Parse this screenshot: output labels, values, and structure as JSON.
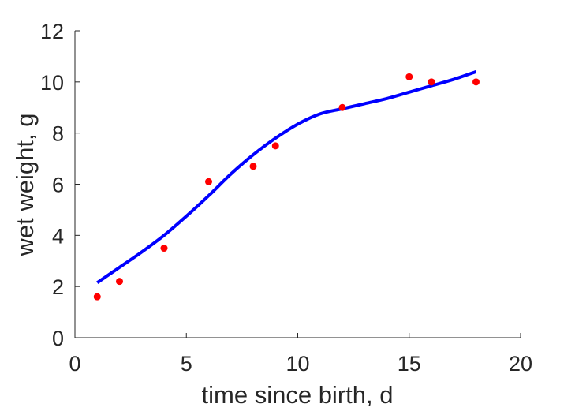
{
  "chart_data": {
    "type": "scatter",
    "title": "",
    "xlabel": "time since birth, d",
    "ylabel": "wet weight, g",
    "xlim": [
      0,
      20
    ],
    "ylim": [
      0,
      12
    ],
    "xticks": [
      0,
      5,
      10,
      15,
      20
    ],
    "yticks": [
      0,
      2,
      4,
      6,
      8,
      10,
      12
    ],
    "grid": false,
    "legend": "none",
    "series": [
      {
        "kind": "scatter",
        "color": "#ff0000",
        "x": [
          1,
          2,
          4,
          6,
          8,
          9,
          12,
          15,
          16,
          18
        ],
        "y": [
          1.6,
          2.2,
          3.5,
          6.1,
          6.7,
          7.5,
          9.0,
          10.2,
          10.0,
          10.0
        ]
      },
      {
        "kind": "line",
        "color": "#0000ff",
        "x": [
          1,
          2,
          3,
          4,
          5,
          6,
          7,
          8,
          9,
          10,
          11,
          12,
          13,
          14,
          15,
          16,
          17,
          18
        ],
        "y": [
          2.15,
          2.75,
          3.35,
          4.0,
          4.75,
          5.55,
          6.4,
          7.15,
          7.8,
          8.35,
          8.75,
          8.95,
          9.15,
          9.35,
          9.6,
          9.85,
          10.1,
          10.4
        ]
      }
    ]
  }
}
